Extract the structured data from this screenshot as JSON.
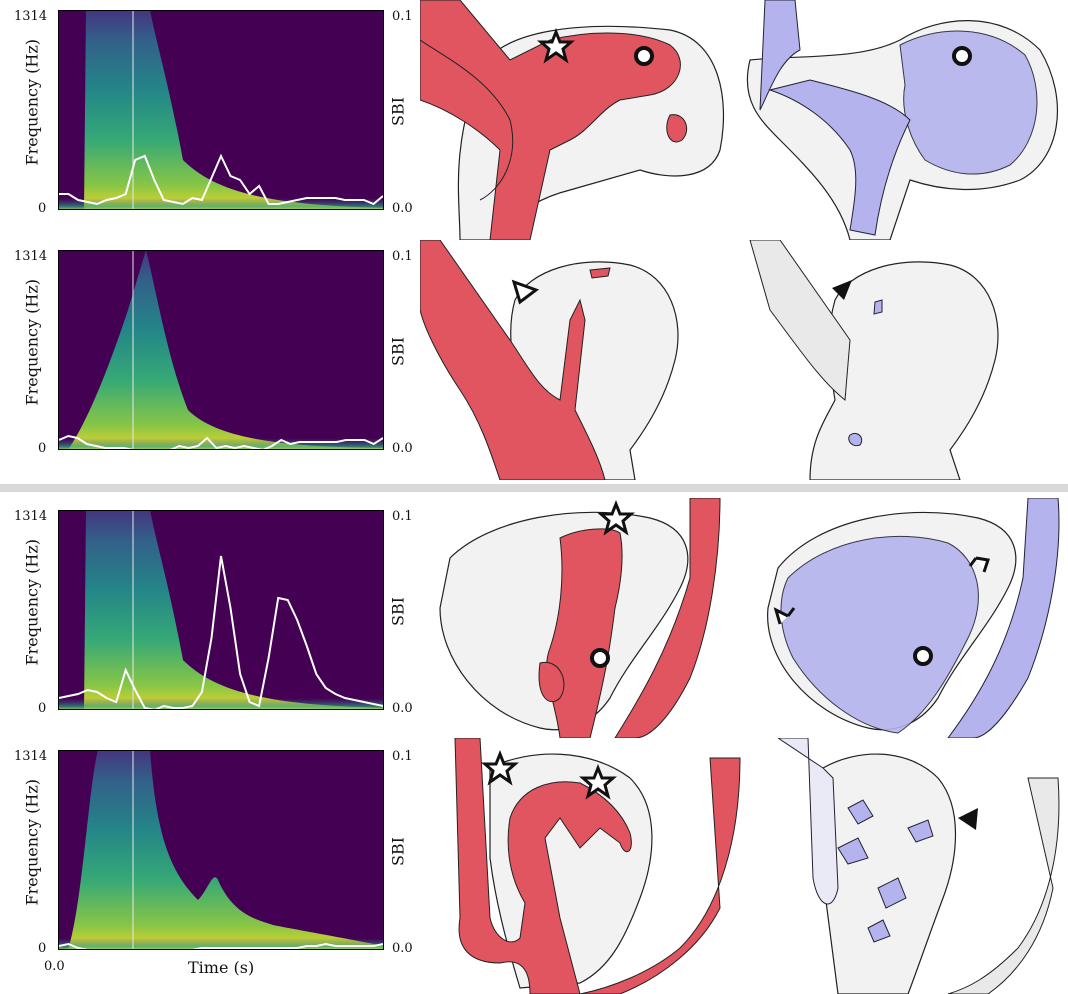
{
  "labels": {
    "ylabel": "Frequency (Hz)",
    "y2label": "SBI",
    "xlabel": "Time (s)",
    "y_top": "1314",
    "y_bottom": "0",
    "y2_top": "0.1",
    "y2_bottom": "0.0",
    "x_left": "0.0"
  },
  "colors": {
    "background": "#440154",
    "sbi_line": "#ffffff",
    "red_surface": "#e05560",
    "blue_surface": "#b5b3ee",
    "divider": "#d9d9d9"
  },
  "chart_data": [
    {
      "type": "line",
      "panel": "row-1",
      "ylabel": "Frequency (Hz)",
      "y2label": "SBI",
      "ylim": [
        0,
        1314
      ],
      "y2lim": [
        0.0,
        0.1
      ],
      "series": [
        {
          "values": [
            0.008,
            0.008,
            0.005,
            0.004,
            0.003,
            0.005,
            0.006,
            0.008,
            0.025,
            0.027,
            0.015,
            0.005,
            0.004,
            0.003,
            0.006,
            0.005,
            0.016,
            0.027,
            0.017,
            0.015,
            0.008,
            0.012,
            0.003,
            0.003,
            0.004,
            0.005,
            0.006,
            0.006,
            0.006,
            0.006,
            0.005,
            0.005,
            0.005,
            0.003,
            0.007
          ]
        }
      ]
    },
    {
      "type": "line",
      "panel": "row-2",
      "ylabel": "Frequency (Hz)",
      "y2label": "SBI",
      "ylim": [
        0,
        1314
      ],
      "y2lim": [
        0.0,
        0.1
      ],
      "series": [
        {
          "values": [
            0.005,
            0.007,
            0.006,
            0.003,
            0.002,
            0.001,
            0.001,
            0.001,
            0.0,
            0.0,
            0.0,
            0.0,
            0.0,
            0.002,
            0.001,
            0.002,
            0.006,
            0.001,
            0.002,
            0.001,
            0.002,
            0.001,
            0.0,
            0.002,
            0.005,
            0.003,
            0.004,
            0.004,
            0.004,
            0.004,
            0.004,
            0.005,
            0.005,
            0.005,
            0.003,
            0.006
          ]
        }
      ]
    },
    {
      "type": "line",
      "panel": "row-3",
      "ylabel": "Frequency (Hz)",
      "y2label": "SBI",
      "ylim": [
        0,
        1314
      ],
      "y2lim": [
        0.0,
        0.1
      ],
      "series": [
        {
          "values": [
            0.006,
            0.007,
            0.008,
            0.01,
            0.009,
            0.006,
            0.004,
            0.02,
            0.01,
            0.001,
            0.0,
            0.002,
            0.001,
            0.001,
            0.002,
            0.009,
            0.036,
            0.077,
            0.051,
            0.018,
            0.004,
            0.002,
            0.026,
            0.056,
            0.055,
            0.045,
            0.032,
            0.018,
            0.011,
            0.008,
            0.006,
            0.005,
            0.004,
            0.003,
            0.002
          ]
        }
      ]
    },
    {
      "type": "line",
      "panel": "row-4",
      "ylabel": "Frequency (Hz)",
      "y2label": "SBI",
      "xlabel": "Time (s)",
      "ylim": [
        0,
        1314
      ],
      "y2lim": [
        0.0,
        0.1
      ],
      "series": [
        {
          "values": [
            0.002,
            0.003,
            0.001,
            0.0,
            0.0,
            0.0,
            0.0,
            0.0,
            0.0,
            0.0,
            0.0,
            0.0,
            0.0,
            0.0,
            0.0,
            0.001,
            0.001,
            0.001,
            0.001,
            0.001,
            0.001,
            0.001,
            0.001,
            0.001,
            0.001,
            0.001,
            0.002,
            0.002,
            0.003,
            0.002,
            0.002,
            0.002,
            0.002,
            0.002,
            0.003
          ]
        }
      ]
    }
  ],
  "markers": {
    "row1": [
      "star-outline",
      "circle-outline",
      "circle-outline"
    ],
    "row2": [
      "triangle-outline",
      "triangle-filled"
    ],
    "row3": [
      "star-outline",
      "circle-outline",
      "arrow-outline",
      "arrow-outline",
      "circle-outline"
    ],
    "row4": [
      "star-outline",
      "star-outline",
      "triangle-filled"
    ]
  }
}
